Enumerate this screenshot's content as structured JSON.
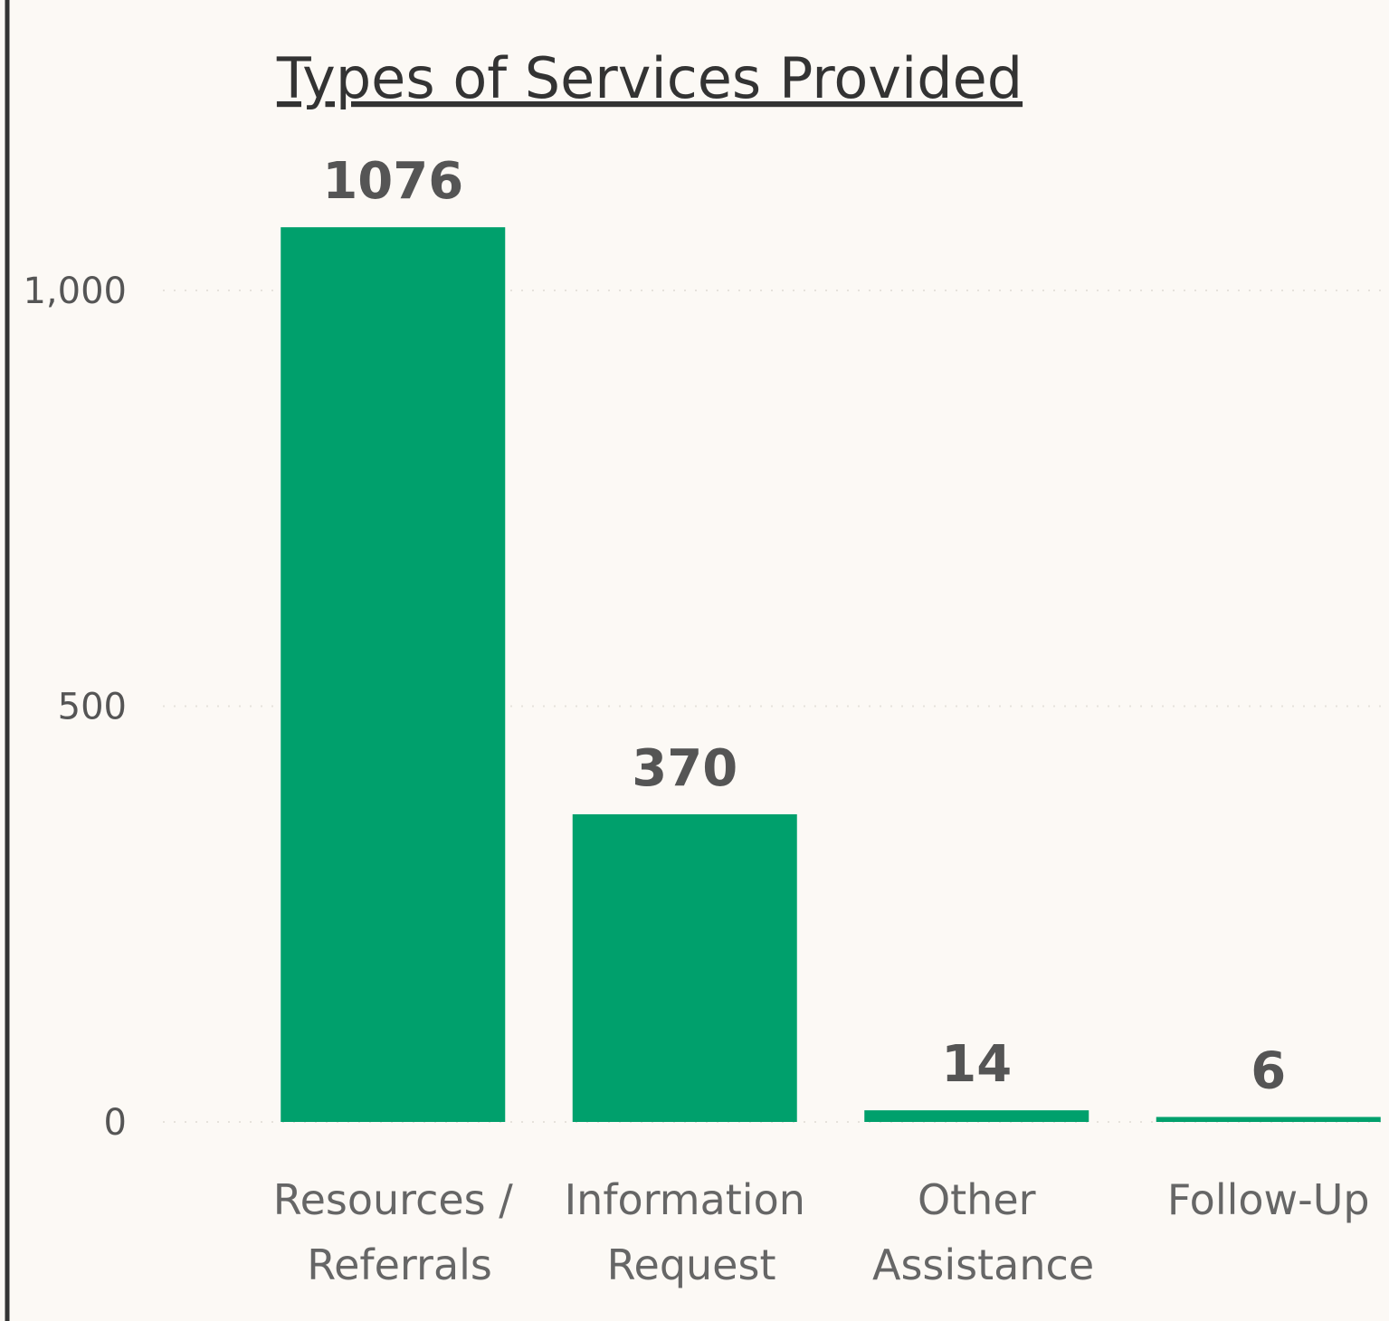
{
  "chart_data": {
    "type": "bar",
    "title": "Types of Services Provided",
    "categories": [
      "Resources / Referrals",
      "Information Request",
      "Other Assistance",
      "Follow-Up"
    ],
    "values": [
      1076,
      370,
      14,
      6
    ],
    "color": "#00a06c",
    "ylim": [
      0,
      1100
    ],
    "yticks": [
      0,
      500,
      {
        "value": 1000,
        "label": "1,000"
      }
    ],
    "grid": true
  }
}
